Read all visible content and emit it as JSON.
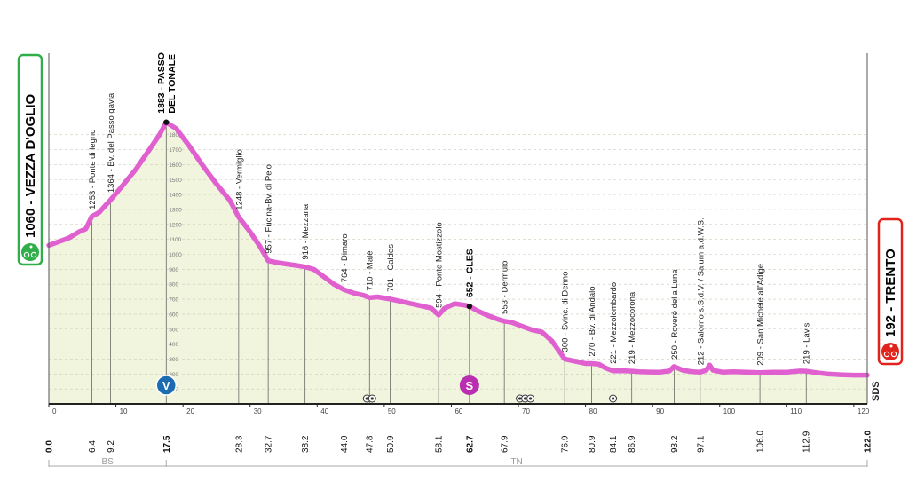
{
  "colors": {
    "profile": "#e060d0",
    "fill": "#f1f5de",
    "start": "#2fae49",
    "finish": "#e0231c",
    "sprint": "#b92fb0",
    "kom": "#1c6cb2"
  },
  "chart_data": {
    "type": "area",
    "xlim": [
      0,
      122
    ],
    "ylim": [
      0,
      2000
    ],
    "x_ticks": [
      0,
      10,
      20,
      30,
      40,
      50,
      60,
      70,
      80,
      90,
      100,
      110,
      120
    ],
    "alt_ticks": [
      100,
      200,
      300,
      400,
      500,
      600,
      700,
      800,
      900,
      1000,
      1100,
      1200,
      1300,
      1400,
      1500,
      1600,
      1700,
      1800
    ],
    "profile": [
      [
        0.0,
        1060
      ],
      [
        1.5,
        1085
      ],
      [
        3.0,
        1110
      ],
      [
        4.5,
        1150
      ],
      [
        5.5,
        1170
      ],
      [
        6.4,
        1253
      ],
      [
        7.5,
        1280
      ],
      [
        8.5,
        1330
      ],
      [
        9.2,
        1364
      ],
      [
        11.0,
        1460
      ],
      [
        13.0,
        1570
      ],
      [
        15.0,
        1700
      ],
      [
        16.5,
        1800
      ],
      [
        17.5,
        1883
      ],
      [
        19.0,
        1840
      ],
      [
        21.0,
        1720
      ],
      [
        23.0,
        1590
      ],
      [
        25.0,
        1470
      ],
      [
        27.0,
        1360
      ],
      [
        28.3,
        1248
      ],
      [
        30.0,
        1150
      ],
      [
        31.5,
        1050
      ],
      [
        32.7,
        957
      ],
      [
        34.0,
        945
      ],
      [
        35.5,
        935
      ],
      [
        37.0,
        925
      ],
      [
        38.2,
        916
      ],
      [
        39.5,
        900
      ],
      [
        41.0,
        850
      ],
      [
        42.5,
        800
      ],
      [
        44.0,
        764
      ],
      [
        45.5,
        740
      ],
      [
        47.0,
        725
      ],
      [
        47.8,
        710
      ],
      [
        49.0,
        715
      ],
      [
        50.9,
        701
      ],
      [
        52.5,
        685
      ],
      [
        54.0,
        670
      ],
      [
        55.5,
        655
      ],
      [
        57.0,
        640
      ],
      [
        58.1,
        594
      ],
      [
        59.0,
        640
      ],
      [
        60.5,
        670
      ],
      [
        62.0,
        660
      ],
      [
        62.7,
        652
      ],
      [
        64.0,
        620
      ],
      [
        65.5,
        590
      ],
      [
        67.0,
        565
      ],
      [
        67.9,
        553
      ],
      [
        69.0,
        545
      ],
      [
        70.5,
        520
      ],
      [
        72.0,
        495
      ],
      [
        73.5,
        480
      ],
      [
        75.0,
        420
      ],
      [
        76.9,
        300
      ],
      [
        78.5,
        285
      ],
      [
        80.0,
        270
      ],
      [
        80.9,
        270
      ],
      [
        82.0,
        265
      ],
      [
        83.0,
        240
      ],
      [
        84.1,
        221
      ],
      [
        85.5,
        222
      ],
      [
        86.9,
        219
      ],
      [
        88.0,
        215
      ],
      [
        89.5,
        213
      ],
      [
        91.0,
        212
      ],
      [
        92.5,
        220
      ],
      [
        93.2,
        250
      ],
      [
        94.5,
        225
      ],
      [
        96.0,
        215
      ],
      [
        97.1,
        212
      ],
      [
        98.0,
        225
      ],
      [
        98.5,
        260
      ],
      [
        99.0,
        225
      ],
      [
        100.5,
        212
      ],
      [
        102.0,
        215
      ],
      [
        104.0,
        212
      ],
      [
        106.0,
        209
      ],
      [
        108.0,
        212
      ],
      [
        110.0,
        212
      ],
      [
        112.0,
        220
      ],
      [
        112.9,
        219
      ],
      [
        114.0,
        212
      ],
      [
        116.0,
        200
      ],
      [
        118.0,
        195
      ],
      [
        120.0,
        192
      ],
      [
        122.0,
        192
      ]
    ],
    "waypoints": [
      {
        "km": 6.4,
        "label": "1253 - Ponte di legno",
        "alt": 1253
      },
      {
        "km": 9.2,
        "label": "1364 - Bv. del Passo gavia",
        "alt": 1364
      },
      {
        "km": 17.5,
        "label": "1883 - PASSO",
        "label2": "DEL TONALE",
        "alt": 1883,
        "bold": true
      },
      {
        "km": 28.3,
        "label": "1248 - Vermiglio",
        "alt": 1248
      },
      {
        "km": 32.7,
        "label": "957 - Fucina-Bv. di Peio",
        "alt": 957
      },
      {
        "km": 38.2,
        "label": "916 - Mezzana",
        "alt": 916
      },
      {
        "km": 44.0,
        "label": "764 - Dimaro",
        "alt": 764
      },
      {
        "km": 47.8,
        "label": "710 - Malè",
        "alt": 710
      },
      {
        "km": 50.9,
        "label": "701 - Caldes",
        "alt": 701
      },
      {
        "km": 58.1,
        "label": "594 - Ponte Mostizzolo",
        "alt": 594
      },
      {
        "km": 62.7,
        "label": "652 - CLES",
        "alt": 652,
        "bold": true
      },
      {
        "km": 67.9,
        "label": "553 - Dermulo",
        "alt": 553
      },
      {
        "km": 76.9,
        "label": "300 - Svinc. di Denno",
        "alt": 300
      },
      {
        "km": 80.9,
        "label": "270 - Bv. di Andalo",
        "alt": 270
      },
      {
        "km": 84.1,
        "label": "221 - Mezzolombardo",
        "alt": 221
      },
      {
        "km": 86.9,
        "label": "219 - Mezzocorona",
        "alt": 219
      },
      {
        "km": 93.2,
        "label": "250 - Roverè della Luna",
        "alt": 250
      },
      {
        "km": 97.1,
        "label": "212 - Salorno s.S.d.V. / Salurn a.d.W.S.",
        "alt": 212
      },
      {
        "km": 106.0,
        "label": "209 - San Michele all'Adige",
        "alt": 209
      },
      {
        "km": 112.9,
        "label": "219 - Lavis",
        "alt": 219
      }
    ],
    "km_labels": [
      {
        "km": 0.0,
        "text": "0.0",
        "bold": true
      },
      {
        "km": 6.4,
        "text": "6.4"
      },
      {
        "km": 9.2,
        "text": "9.2"
      },
      {
        "km": 17.5,
        "text": "17.5",
        "bold": true
      },
      {
        "km": 28.3,
        "text": "28.3"
      },
      {
        "km": 32.7,
        "text": "32.7"
      },
      {
        "km": 38.2,
        "text": "38.2"
      },
      {
        "km": 44.0,
        "text": "44.0"
      },
      {
        "km": 47.8,
        "text": "47.8"
      },
      {
        "km": 50.9,
        "text": "50.9"
      },
      {
        "km": 58.1,
        "text": "58.1"
      },
      {
        "km": 62.7,
        "text": "62.7",
        "bold": true
      },
      {
        "km": 67.9,
        "text": "67.9"
      },
      {
        "km": 76.9,
        "text": "76.9"
      },
      {
        "km": 80.9,
        "text": "80.9"
      },
      {
        "km": 84.1,
        "text": "84.1"
      },
      {
        "km": 86.9,
        "text": "86.9"
      },
      {
        "km": 93.2,
        "text": "93.2"
      },
      {
        "km": 97.1,
        "text": "97.1"
      },
      {
        "km": 106.0,
        "text": "106.0"
      },
      {
        "km": 112.9,
        "text": "112.9"
      },
      {
        "km": 122.0,
        "text": "122.0",
        "bold": true
      }
    ],
    "regions": [
      {
        "from": 0,
        "to": 17.5,
        "label": "BS"
      },
      {
        "from": 17.5,
        "to": 122,
        "label": "TN"
      }
    ],
    "start": {
      "label": "1060 - VEZZA D'OGLIO",
      "alt": 1060
    },
    "finish": {
      "label": "192 - TRENTO",
      "alt": 192
    },
    "kom": {
      "km": 17.5,
      "letter": "V"
    },
    "sprint": {
      "km": 62.7,
      "letter": "S"
    },
    "feed_zone": {
      "text": "SDS"
    },
    "markers": [
      {
        "km": 47.8,
        "count": 2
      },
      {
        "km": 71.0,
        "count": 3
      },
      {
        "km": 84.1,
        "count": 1
      }
    ]
  }
}
